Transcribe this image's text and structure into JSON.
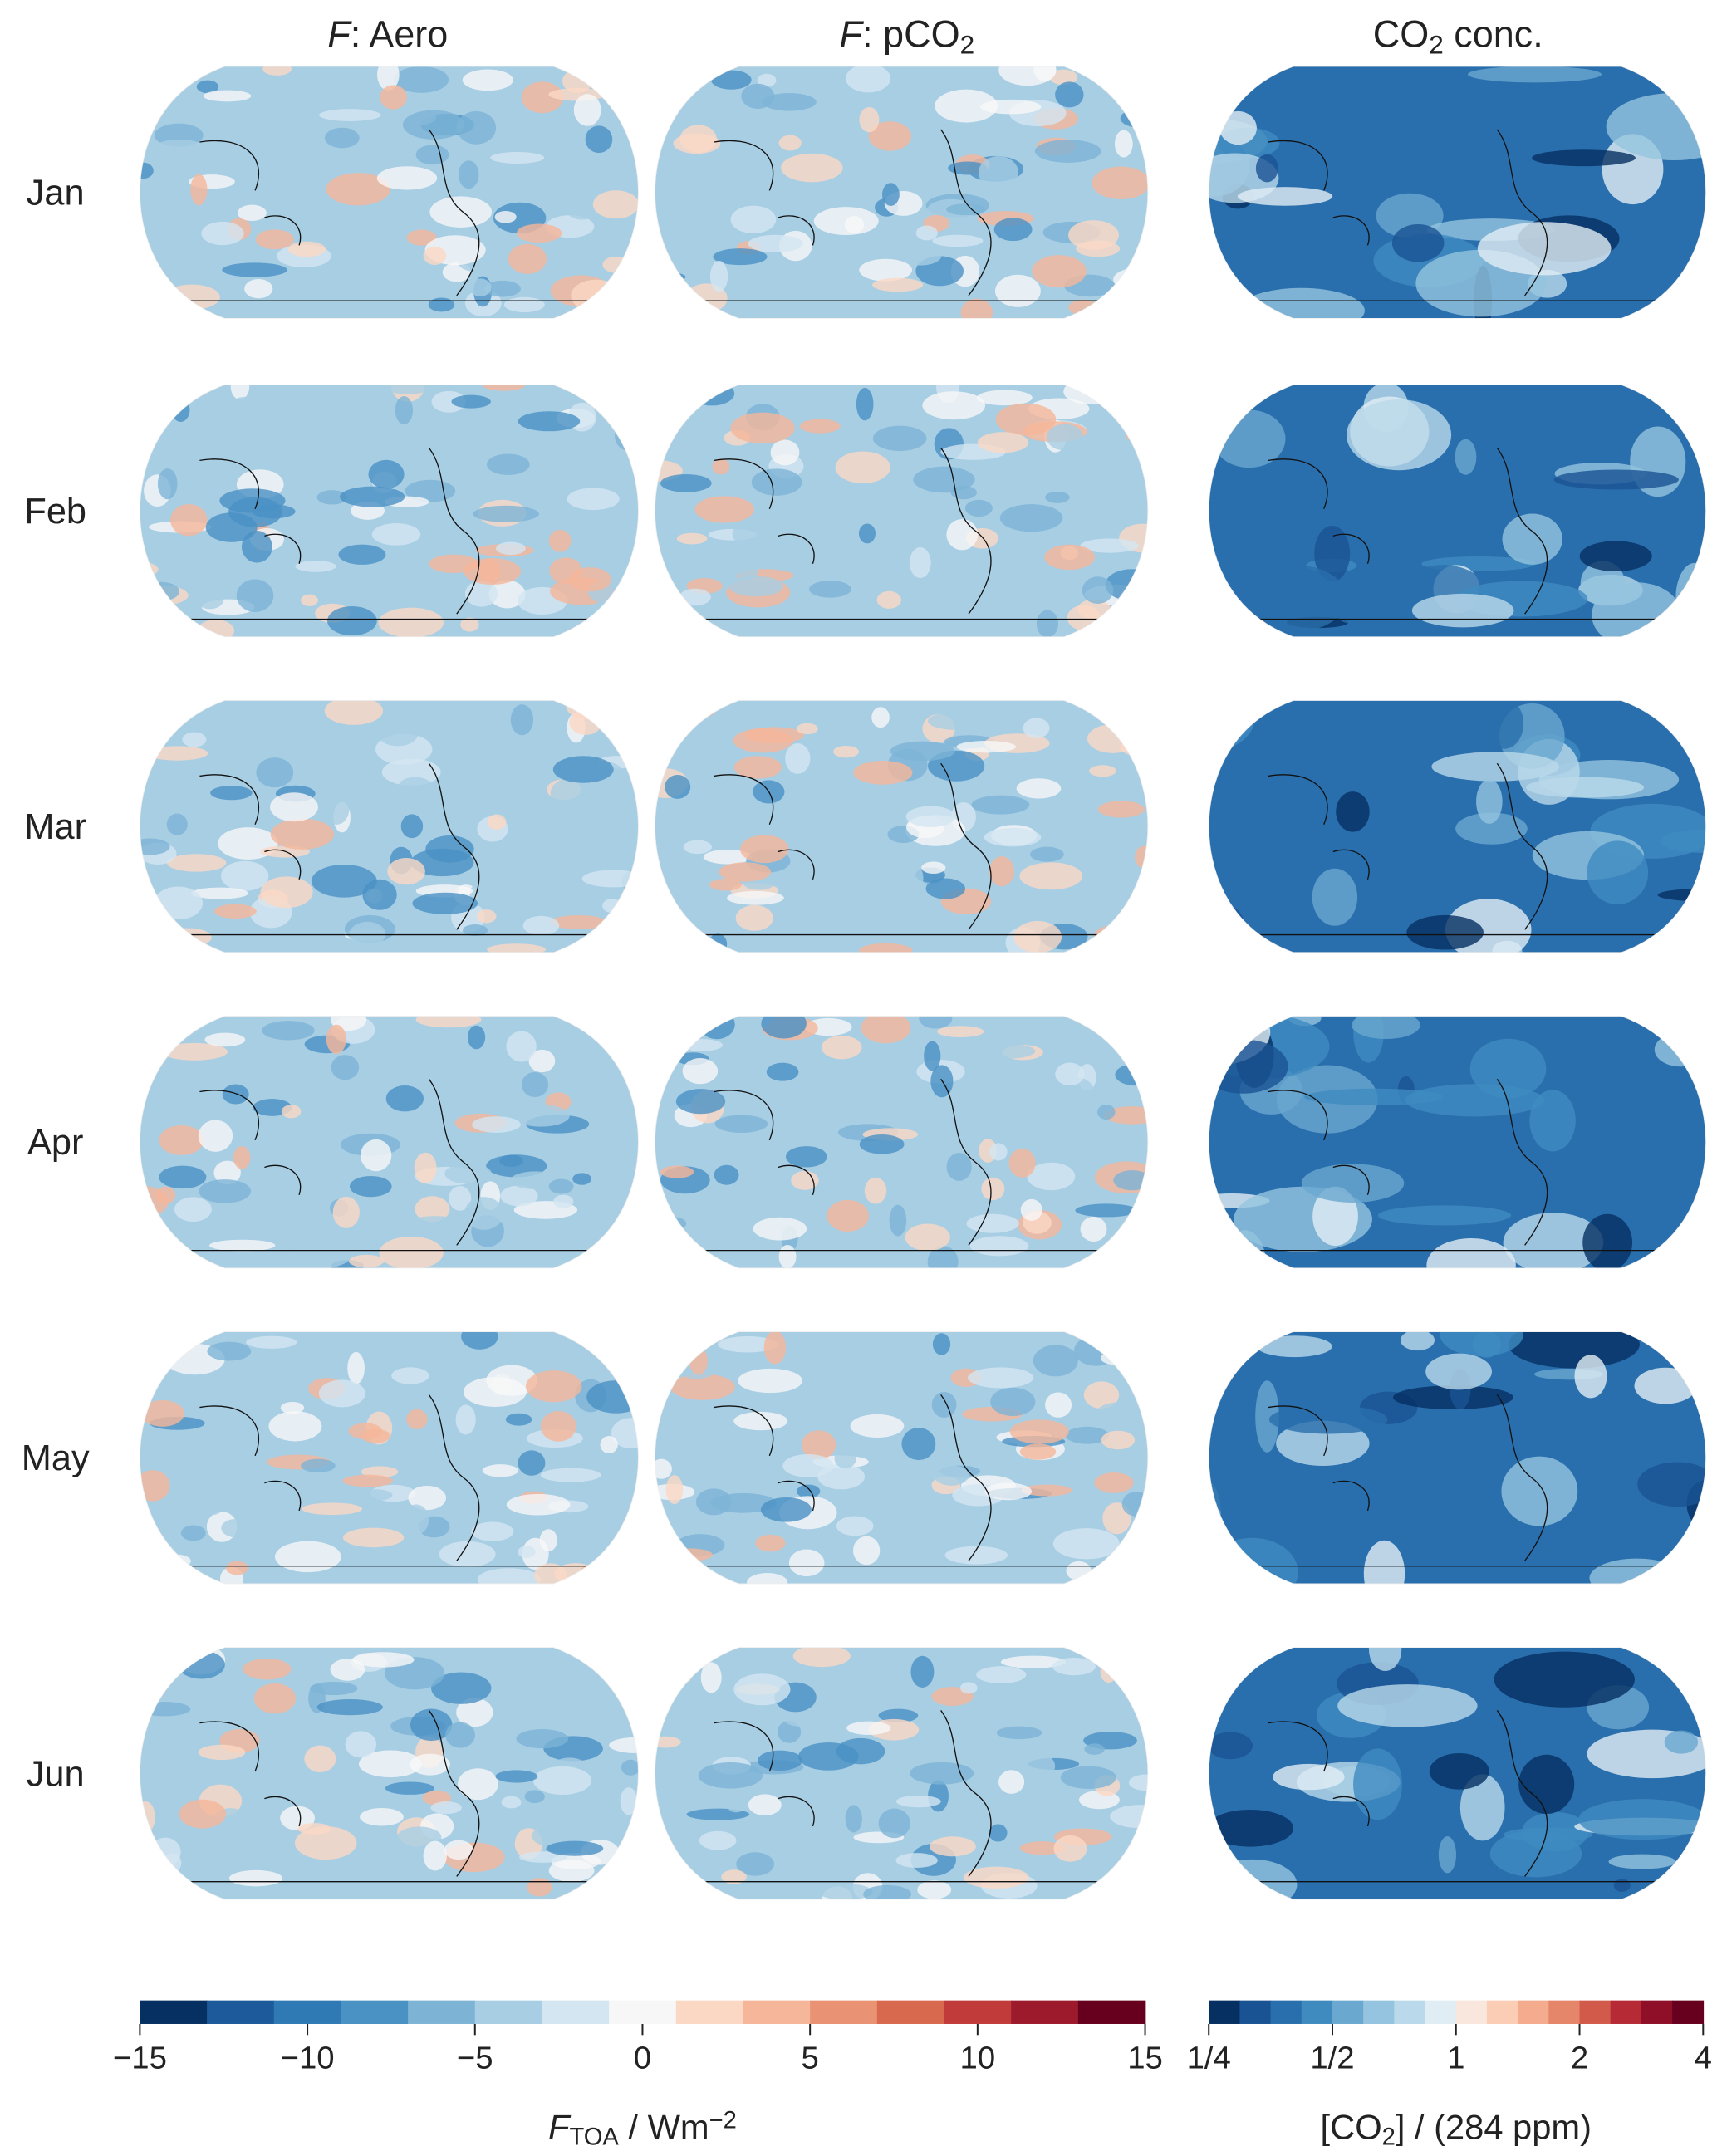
{
  "chart_data": {
    "type": "map-grid",
    "column_titles": [
      [
        {
          "text": "F",
          "style": "italic"
        },
        {
          "text": ": Aero"
        }
      ],
      [
        {
          "text": "F",
          "style": "italic"
        },
        {
          "text": ": pCO"
        },
        {
          "text": "2",
          "style": "sub"
        }
      ],
      [
        {
          "text": "CO"
        },
        {
          "text": "2",
          "style": "sub"
        },
        {
          "text": " conc."
        }
      ]
    ],
    "row_labels": [
      "Jan",
      "Feb",
      "Mar",
      "Apr",
      "May",
      "Jun"
    ],
    "colorbars": [
      {
        "lim": [
          -15,
          15
        ],
        "scale": "linear",
        "ticks": [
          {
            "value": -15,
            "label": "−15"
          },
          {
            "value": -10,
            "label": "−10"
          },
          {
            "value": -5,
            "label": "−5"
          },
          0,
          5,
          10,
          15
        ],
        "colors": [
          "#053061",
          "#1d5a9b",
          "#2f79b5",
          "#4a91c4",
          "#7db4d6",
          "#a8cee4",
          "#d3e6f1",
          "#f7f7f7",
          "#fbd8c4",
          "#f5b69a",
          "#e99374",
          "#d8694f",
          "#c13b3a",
          "#9d1a2c",
          "#67001f"
        ],
        "label": [
          {
            "text": "F",
            "style": "italic"
          },
          {
            "text": "TOA",
            "style": "sub"
          },
          {
            "text": " / Wm"
          },
          {
            "text": "−2",
            "style": "sup"
          }
        ]
      },
      {
        "lim": [
          0.25,
          4
        ],
        "scale": "log",
        "ticks": [
          {
            "value": 0.25,
            "label": "1/4"
          },
          {
            "value": 0.5,
            "label": "1/2"
          },
          1,
          2,
          4
        ],
        "colors": [
          "#053061",
          "#1a5394",
          "#2a6fad",
          "#3f8bc0",
          "#6aa8d0",
          "#94c4df",
          "#bad9ea",
          "#e1edf4",
          "#f9e6dc",
          "#fbcdb4",
          "#f4ab8e",
          "#e5856a",
          "#d15a4a",
          "#b52a35",
          "#8f0f28",
          "#67001f"
        ],
        "label": [
          {
            "text": "[CO"
          },
          {
            "text": "2",
            "style": "sub"
          },
          {
            "text": "] / (284 ppm)"
          }
        ]
      }
    ]
  }
}
